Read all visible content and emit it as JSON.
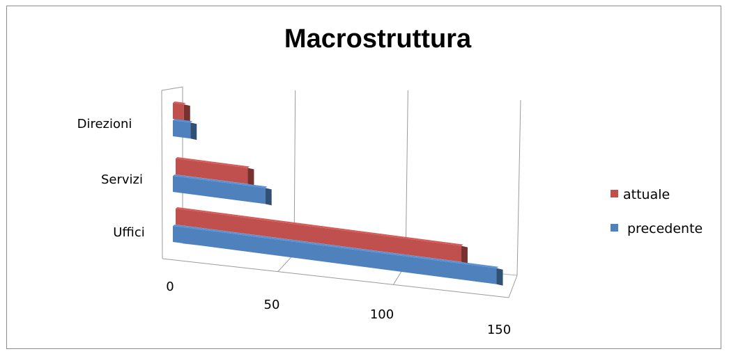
{
  "chart_data": {
    "type": "bar",
    "orientation": "horizontal",
    "style": "3d",
    "title": "Macrostruttura",
    "categories": [
      "Direzioni",
      "Servizi",
      "Uffici"
    ],
    "series": [
      {
        "name": "attuale",
        "color": "#c0504d",
        "values": [
          5,
          34,
          131
        ]
      },
      {
        "name": "precedente",
        "color": "#4f81bd",
        "values": [
          8,
          42,
          147
        ]
      }
    ],
    "xlim": [
      0,
      150
    ],
    "xticks": [
      "0",
      "50",
      "100",
      "150"
    ],
    "grid": true,
    "legend": "right"
  }
}
